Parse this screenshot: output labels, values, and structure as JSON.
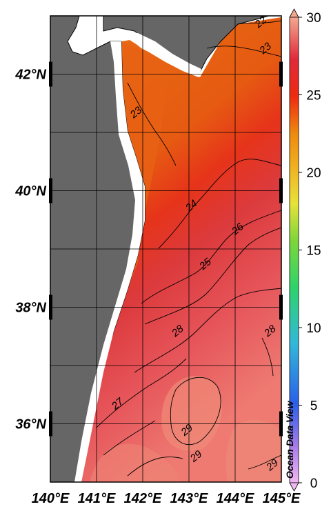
{
  "map": {
    "lat_labels": [
      {
        "text": "42°N",
        "value": 42
      },
      {
        "text": "40°N",
        "value": 40
      },
      {
        "text": "38°N",
        "value": 38
      },
      {
        "text": "36°N",
        "value": 36
      }
    ],
    "lon_labels": [
      {
        "text": "140°E",
        "value": 140
      },
      {
        "text": "141°E",
        "value": 141
      },
      {
        "text": "142°E",
        "value": 142
      },
      {
        "text": "143°E",
        "value": 143
      },
      {
        "text": "144°E",
        "value": 144
      },
      {
        "text": "145°E",
        "value": 145
      }
    ],
    "lat_range": [
      35,
      43
    ],
    "lon_range": [
      140,
      145
    ],
    "contour_labels": [
      {
        "text": "22",
        "lon": 144.6,
        "lat": 42.85
      },
      {
        "text": "23",
        "lon": 144.7,
        "lat": 42.4
      },
      {
        "text": "23",
        "lon": 141.9,
        "lat": 41.3
      },
      {
        "text": "24",
        "lon": 143.1,
        "lat": 39.7
      },
      {
        "text": "25",
        "lon": 143.4,
        "lat": 38.7
      },
      {
        "text": "26",
        "lon": 144.1,
        "lat": 39.3
      },
      {
        "text": "28",
        "lon": 142.8,
        "lat": 37.55
      },
      {
        "text": "28",
        "lon": 144.8,
        "lat": 37.55
      },
      {
        "text": "27",
        "lon": 141.5,
        "lat": 36.3
      },
      {
        "text": "29",
        "lon": 143.0,
        "lat": 35.85
      },
      {
        "text": "29",
        "lon": 143.2,
        "lat": 35.4
      },
      {
        "text": "29",
        "lon": 144.85,
        "lat": 35.25
      }
    ],
    "land_color": "#666666",
    "no_data_color": "#ffffff"
  },
  "colorbar": {
    "ticks": [
      "0",
      "5",
      "10",
      "15",
      "20",
      "25",
      "30"
    ],
    "min": 0,
    "max": 30
  },
  "watermark": "Ocean Data View"
}
